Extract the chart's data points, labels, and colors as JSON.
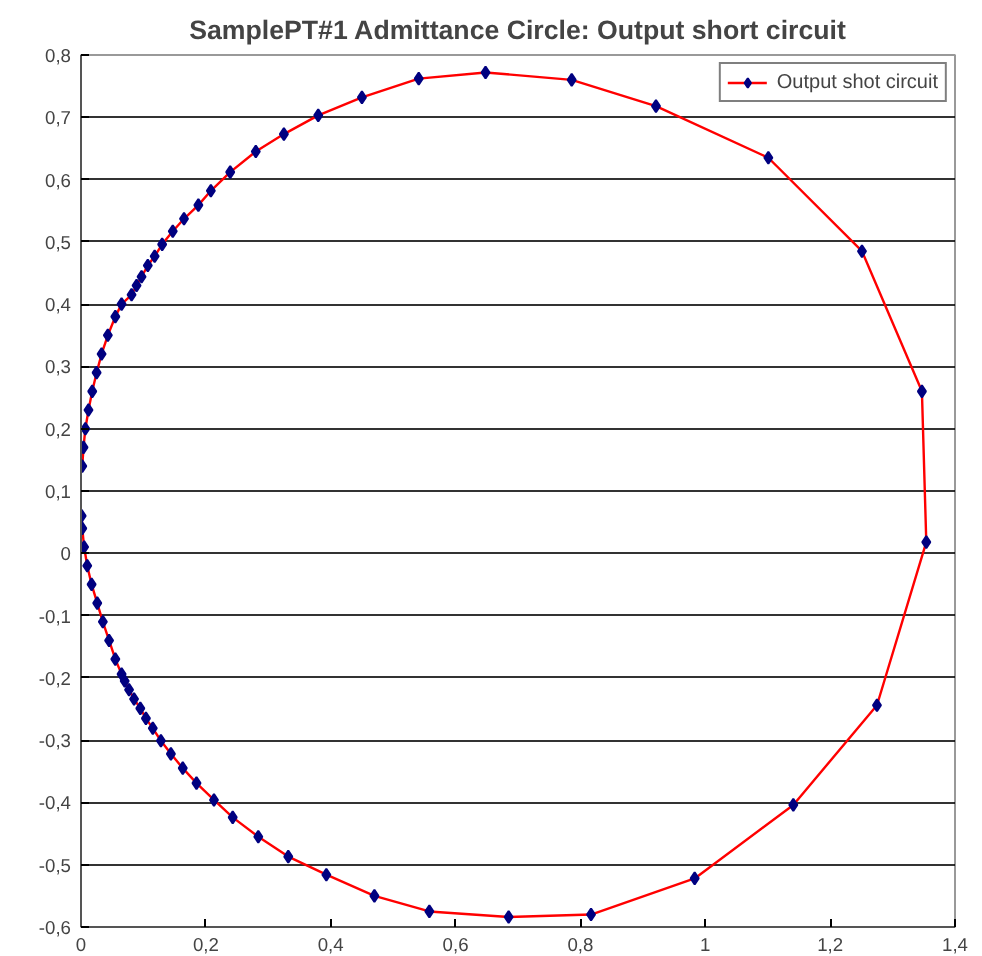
{
  "chart_data": {
    "type": "line",
    "title": "SamplePT#1 Admittance Circle: Output short circuit",
    "series": [
      {
        "name": "Output shot circuit",
        "color": "#ff0000",
        "x": [
          0.002,
          0.004,
          0.007,
          0.012,
          0.018,
          0.025,
          0.033,
          0.043,
          0.055,
          0.065,
          0.081,
          0.089,
          0.097,
          0.107,
          0.118,
          0.13,
          0.147,
          0.165,
          0.188,
          0.208,
          0.239,
          0.28,
          0.325,
          0.38,
          0.45,
          0.541,
          0.648,
          0.786,
          0.921,
          1.101,
          1.251,
          1.347,
          1.354,
          1.275,
          1.141,
          0.983,
          0.817,
          0.685,
          0.558,
          0.47,
          0.393,
          0.332,
          0.284,
          0.243,
          0.213,
          0.185,
          0.163,
          0.144,
          0.128,
          0.115,
          0.104,
          0.095,
          0.085,
          0.077,
          0.07,
          0.065,
          0.055,
          0.045,
          0.035,
          0.026,
          0.017,
          0.01,
          0.005,
          0.002,
          0.001
        ],
        "values": [
          0.14,
          0.17,
          0.2,
          0.23,
          0.26,
          0.29,
          0.32,
          0.35,
          0.38,
          0.4,
          0.415,
          0.43,
          0.444,
          0.462,
          0.477,
          0.496,
          0.517,
          0.537,
          0.559,
          0.582,
          0.612,
          0.645,
          0.673,
          0.703,
          0.732,
          0.762,
          0.772,
          0.76,
          0.718,
          0.635,
          0.485,
          0.26,
          0.018,
          -0.244,
          -0.404,
          -0.522,
          -0.58,
          -0.584,
          -0.575,
          -0.55,
          -0.516,
          -0.487,
          -0.455,
          -0.424,
          -0.396,
          -0.369,
          -0.345,
          -0.322,
          -0.301,
          -0.281,
          -0.265,
          -0.249,
          -0.234,
          -0.219,
          -0.205,
          -0.194,
          -0.17,
          -0.14,
          -0.11,
          -0.08,
          -0.05,
          -0.02,
          0.01,
          0.04,
          0.06
        ]
      }
    ],
    "xlim": [
      0,
      1.4
    ],
    "xticks": [
      {
        "value": 0,
        "label": "0"
      },
      {
        "value": 0.2,
        "label": "0,2"
      },
      {
        "value": 0.4,
        "label": "0,4"
      },
      {
        "value": 0.6,
        "label": "0,6"
      },
      {
        "value": 0.8,
        "label": "0,8"
      },
      {
        "value": 1,
        "label": "1"
      },
      {
        "value": 1.2,
        "label": "1,2"
      },
      {
        "value": 1.4,
        "label": "1,4"
      }
    ],
    "ylim": [
      -0.6,
      0.8
    ],
    "yticks": [
      {
        "value": -0.6,
        "label": "-0,6"
      },
      {
        "value": -0.5,
        "label": "-0,5"
      },
      {
        "value": -0.4,
        "label": "-0,4"
      },
      {
        "value": -0.3,
        "label": "-0,3"
      },
      {
        "value": -0.2,
        "label": "-0,2"
      },
      {
        "value": -0.1,
        "label": "-0,1"
      },
      {
        "value": 0,
        "label": "0"
      },
      {
        "value": 0.1,
        "label": "0,1"
      },
      {
        "value": 0.2,
        "label": "0,2"
      },
      {
        "value": 0.3,
        "label": "0,3"
      },
      {
        "value": 0.4,
        "label": "0,4"
      },
      {
        "value": 0.5,
        "label": "0,5"
      },
      {
        "value": 0.6,
        "label": "0,6"
      },
      {
        "value": 0.7,
        "label": "0,7"
      },
      {
        "value": 0.8,
        "label": "0,8"
      }
    ],
    "grid": "y",
    "legend": "top right",
    "marker": "diamond",
    "line_style": "solid"
  }
}
